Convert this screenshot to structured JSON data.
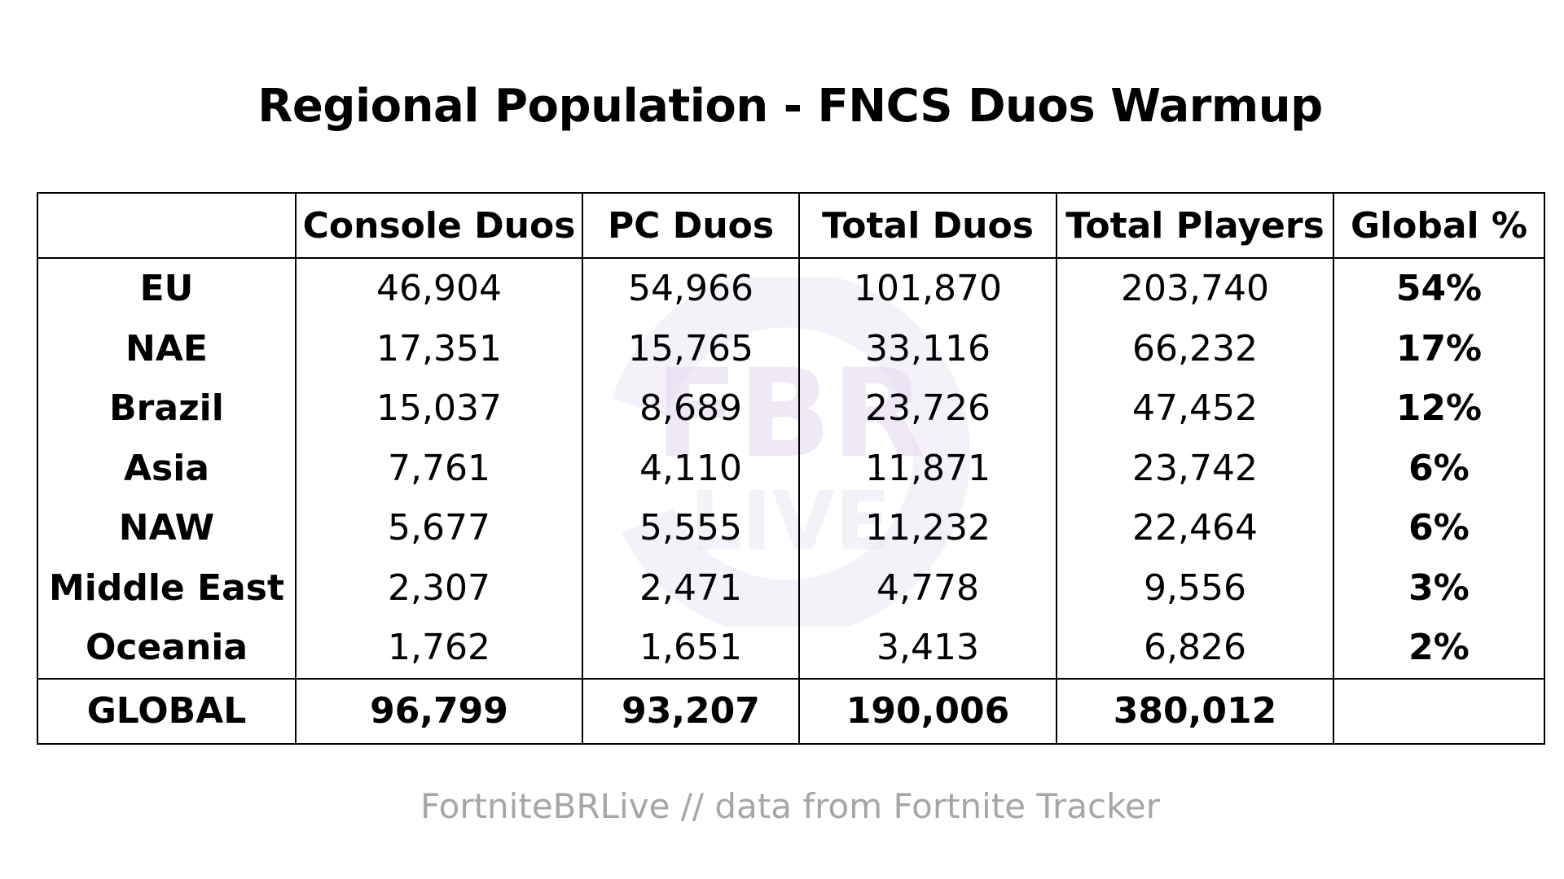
{
  "title": "Regional Population - FNCS Duos Warmup",
  "footer": "FortniteBRLive // data from Fortnite Tracker",
  "watermark": {
    "line1": "FBR",
    "line2": "LIVE",
    "color": "#e6dcf2"
  },
  "chart_data": {
    "type": "table",
    "title": "Regional Population - FNCS Duos Warmup",
    "columns": [
      "",
      "Console Duos",
      "PC Duos",
      "Total Duos",
      "Total Players",
      "Global %"
    ],
    "rows": [
      {
        "region": "EU",
        "console_duos": "46,904",
        "pc_duos": "54,966",
        "total_duos": "101,870",
        "total_players": "203,740",
        "global_pct": "54%"
      },
      {
        "region": "NAE",
        "console_duos": "17,351",
        "pc_duos": "15,765",
        "total_duos": "33,116",
        "total_players": "66,232",
        "global_pct": "17%"
      },
      {
        "region": "Brazil",
        "console_duos": "15,037",
        "pc_duos": "8,689",
        "total_duos": "23,726",
        "total_players": "47,452",
        "global_pct": "12%"
      },
      {
        "region": "Asia",
        "console_duos": "7,761",
        "pc_duos": "4,110",
        "total_duos": "11,871",
        "total_players": "23,742",
        "global_pct": "6%"
      },
      {
        "region": "NAW",
        "console_duos": "5,677",
        "pc_duos": "5,555",
        "total_duos": "11,232",
        "total_players": "22,464",
        "global_pct": "6%"
      },
      {
        "region": "Middle East",
        "console_duos": "2,307",
        "pc_duos": "2,471",
        "total_duos": "4,778",
        "total_players": "9,556",
        "global_pct": "3%"
      },
      {
        "region": "Oceania",
        "console_duos": "1,762",
        "pc_duos": "1,651",
        "total_duos": "3,413",
        "total_players": "6,826",
        "global_pct": "2%"
      }
    ],
    "total": {
      "region": "GLOBAL",
      "console_duos": "96,799",
      "pc_duos": "93,207",
      "total_duos": "190,006",
      "total_players": "380,012",
      "global_pct": ""
    }
  }
}
